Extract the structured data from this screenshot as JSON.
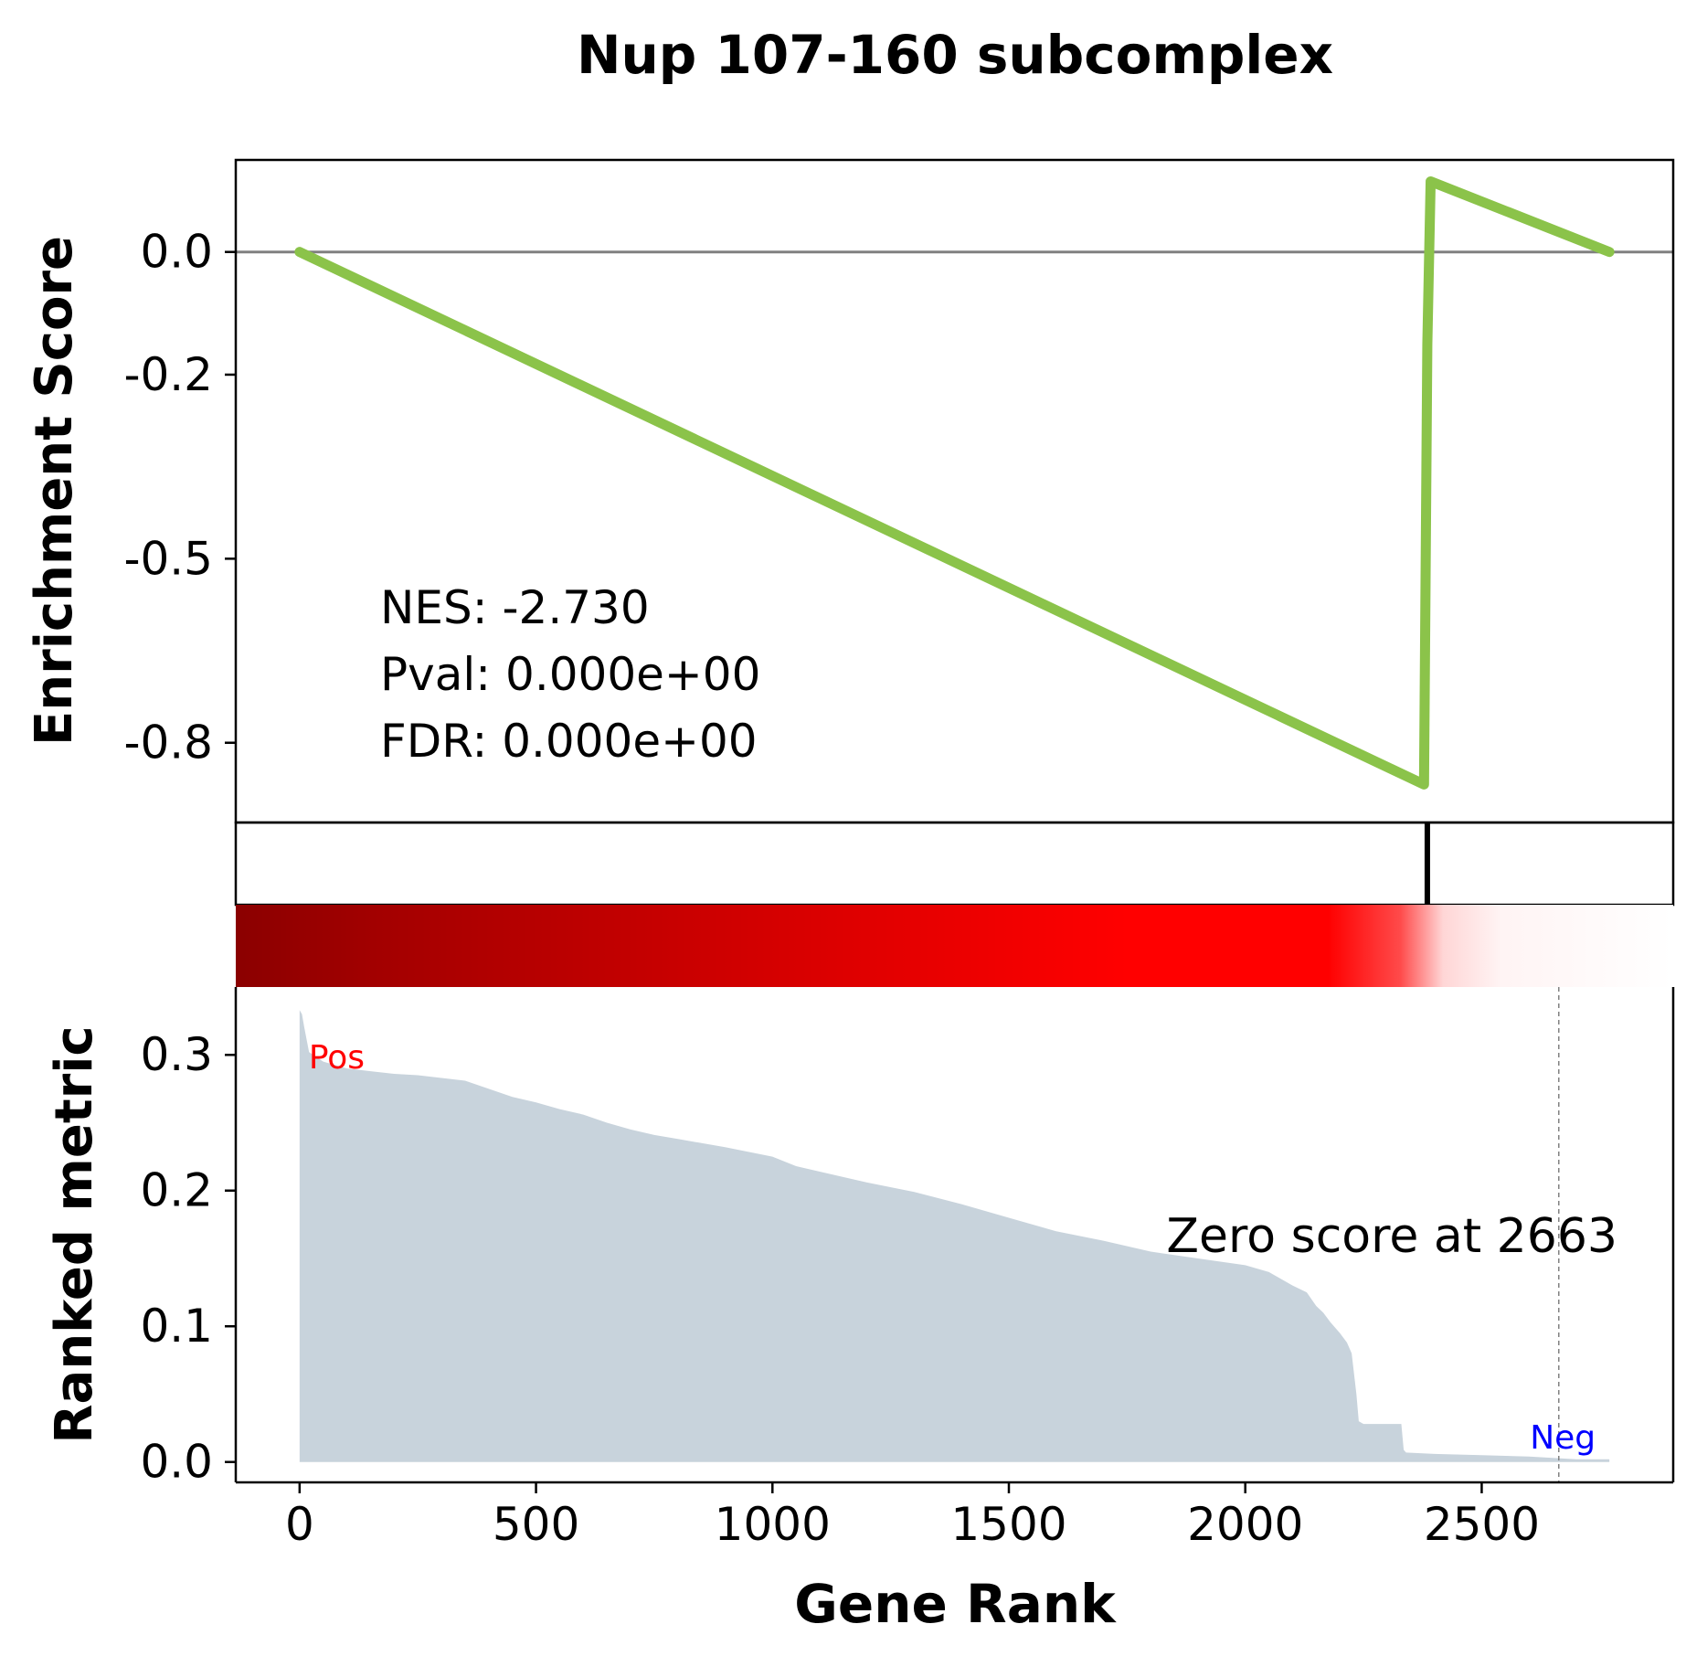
{
  "chart_data": {
    "type": "line",
    "title": "Nup 107-160 subcomplex",
    "xlabel": "Gene Rank",
    "x_ticks": [
      0,
      500,
      1000,
      1500,
      2000,
      2500
    ],
    "x_tick_labels": [
      "0",
      "500",
      "1000",
      "1500",
      "2000",
      "2500"
    ],
    "xlim": [
      -135,
      2905
    ],
    "enrichment": {
      "ylabel": "Enrichment Score",
      "y_ticks": [
        0.0,
        -0.2,
        -0.5,
        -0.8
      ],
      "y_tick_labels": [
        "0.0",
        "-0.2",
        "-0.5",
        "-0.8"
      ],
      "ylim": [
        -0.93,
        0.15
      ],
      "line_color": "#8bc34a",
      "zero_line_color": "#808080",
      "series": {
        "x": [
          0,
          2378,
          2385,
          2392,
          2770
        ],
        "y": [
          0.0,
          -0.868,
          -0.15,
          0.115,
          0.0
        ]
      },
      "stats": {
        "nes": "NES: -2.730",
        "pval": "Pval: 0.000e+00",
        "fdr": "FDR: 0.000e+00"
      }
    },
    "hits": {
      "x": [
        2385
      ],
      "color": "#000000"
    },
    "heatmap": {
      "colors": [
        "#8b0000",
        "#ff0000",
        "#ffffff"
      ]
    },
    "ranked_metric": {
      "ylabel": "Ranked metric",
      "y_ticks": [
        0.0,
        0.1,
        0.2,
        0.3
      ],
      "y_tick_labels": [
        "0.0",
        "0.1",
        "0.2",
        "0.3"
      ],
      "ylim": [
        -0.015,
        0.35
      ],
      "fill_color": "#c8d3dc",
      "x": [
        0,
        5,
        10,
        20,
        50,
        100,
        150,
        200,
        250,
        300,
        350,
        400,
        450,
        500,
        550,
        600,
        650,
        700,
        750,
        800,
        900,
        1000,
        1050,
        1100,
        1200,
        1300,
        1400,
        1500,
        1600,
        1700,
        1800,
        1900,
        2000,
        2050,
        2100,
        2130,
        2150,
        2165,
        2180,
        2200,
        2215,
        2225,
        2235,
        2240,
        2245,
        2250,
        2255,
        2330,
        2335,
        2340,
        2400,
        2500,
        2600,
        2650,
        2700,
        2770
      ],
      "values": [
        0.333,
        0.33,
        0.32,
        0.302,
        0.295,
        0.29,
        0.288,
        0.286,
        0.285,
        0.283,
        0.281,
        0.275,
        0.269,
        0.265,
        0.26,
        0.256,
        0.25,
        0.245,
        0.241,
        0.238,
        0.232,
        0.225,
        0.218,
        0.214,
        0.206,
        0.199,
        0.19,
        0.18,
        0.17,
        0.163,
        0.155,
        0.15,
        0.145,
        0.14,
        0.13,
        0.125,
        0.115,
        0.11,
        0.103,
        0.095,
        0.088,
        0.08,
        0.05,
        0.03,
        0.029,
        0.028,
        0.028,
        0.028,
        0.009,
        0.007,
        0.006,
        0.005,
        0.004,
        0.003,
        0.002,
        0.002
      ],
      "pos_label": "Pos",
      "pos_color": "#ff0000",
      "neg_label": "Neg",
      "neg_color": "#0000ff",
      "zero_cross_x": 2663,
      "zero_label": "Zero score at 2663"
    }
  }
}
